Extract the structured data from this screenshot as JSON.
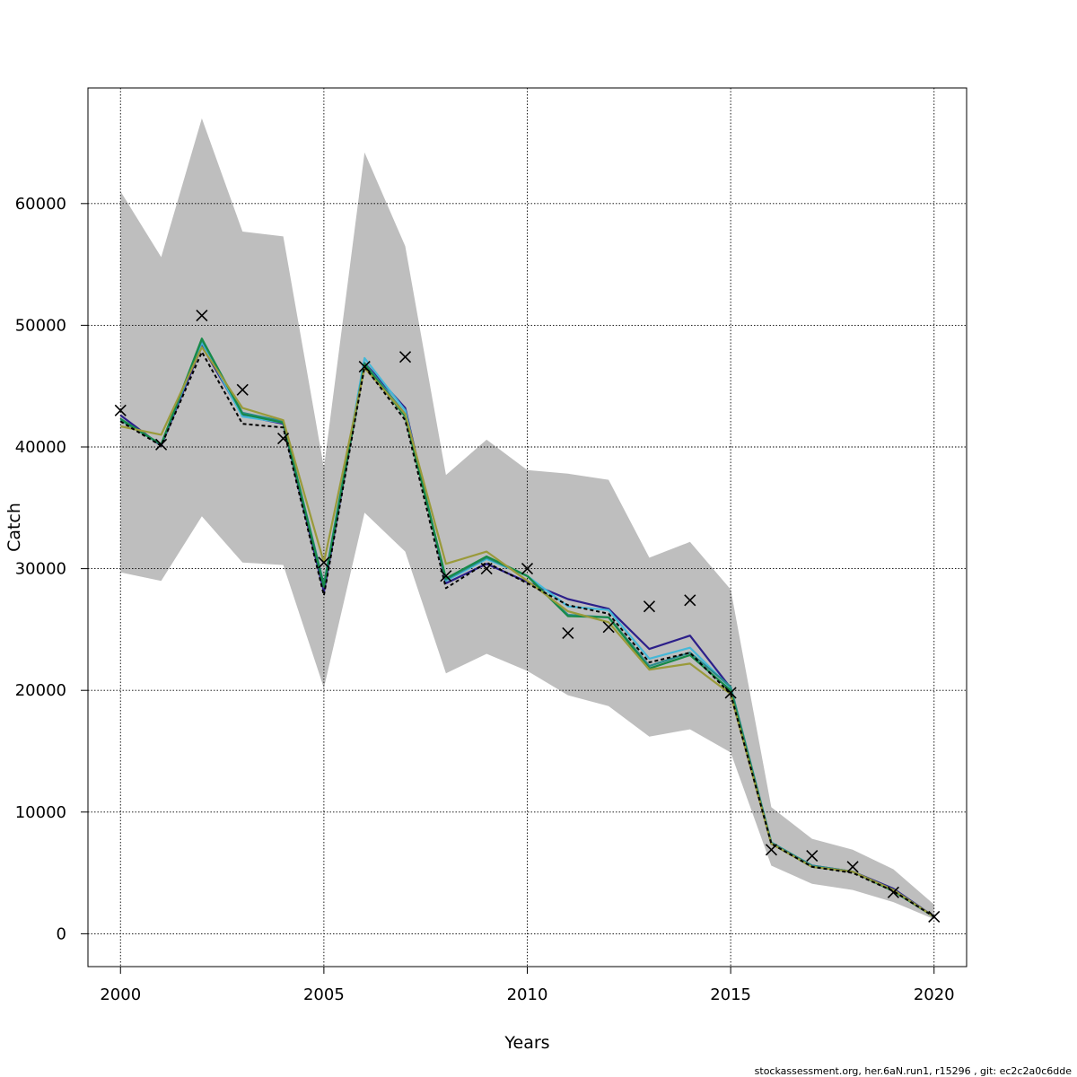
{
  "chart_data": {
    "type": "line",
    "xlabel": "Years",
    "ylabel": "Catch",
    "xlim": [
      1999.2,
      2020.8
    ],
    "ylim": [
      -2700,
      69500
    ],
    "xticks": [
      2000,
      2005,
      2010,
      2015,
      2020
    ],
    "yticks": [
      0,
      10000,
      20000,
      30000,
      40000,
      50000,
      60000
    ],
    "grid": true,
    "x": [
      2000,
      2001,
      2002,
      2003,
      2004,
      2005,
      2006,
      2007,
      2008,
      2009,
      2010,
      2011,
      2012,
      2013,
      2014,
      2015,
      2016,
      2017,
      2018,
      2019,
      2020
    ],
    "confidence_band": {
      "color": "#bebebe",
      "lower": [
        29700,
        29000,
        34300,
        30500,
        30300,
        20200,
        34600,
        31400,
        21400,
        23000,
        21600,
        19600,
        18700,
        16200,
        16800,
        14900,
        5600,
        4100,
        3600,
        2600,
        1200
      ],
      "upper": [
        61000,
        55600,
        67000,
        57700,
        57300,
        38300,
        64200,
        56500,
        37700,
        40600,
        38100,
        37800,
        37300,
        30900,
        32200,
        28300,
        10400,
        7800,
        6900,
        5300,
        2400
      ]
    },
    "series": [
      {
        "color": "#000000",
        "dashed": true,
        "values": [
          42100,
          40100,
          47800,
          41900,
          41600,
          27800,
          46600,
          42200,
          28400,
          30500,
          28800,
          27000,
          26300,
          22300,
          23100,
          19700,
          7400,
          5500,
          5000,
          3500,
          1400
        ]
      },
      {
        "color": "#2c1f8a",
        "values": [
          42600,
          40100,
          48300,
          42600,
          41900,
          28100,
          46900,
          43200,
          28800,
          30400,
          28900,
          27500,
          26700,
          23400,
          24500,
          20200,
          7400,
          5600,
          5100,
          3700,
          1400
        ]
      },
      {
        "color": "#45b8d8",
        "values": [
          42300,
          40200,
          48600,
          42500,
          42000,
          28600,
          47300,
          43000,
          29000,
          30800,
          29400,
          26900,
          26600,
          22600,
          23500,
          20200,
          7500,
          5500,
          5100,
          3600,
          1400
        ]
      },
      {
        "color": "#2a8c8c",
        "values": [
          42200,
          40200,
          48800,
          42800,
          42100,
          28700,
          46900,
          42700,
          29100,
          30900,
          29400,
          26200,
          26000,
          22000,
          23100,
          20300,
          7500,
          5600,
          5100,
          3600,
          1400
        ]
      },
      {
        "color": "#168a48",
        "values": [
          42300,
          40200,
          48900,
          42700,
          42000,
          28500,
          46800,
          42500,
          29200,
          31000,
          29400,
          26100,
          26000,
          21800,
          22900,
          20000,
          7400,
          5500,
          5100,
          3500,
          1400
        ]
      },
      {
        "color": "#9a9a3a",
        "values": [
          41700,
          41000,
          48200,
          43200,
          42200,
          30500,
          46500,
          42700,
          30400,
          31400,
          29000,
          26500,
          25600,
          21700,
          22200,
          19700,
          7400,
          5500,
          5100,
          3600,
          1400
        ]
      }
    ],
    "observed": {
      "marker": "x",
      "values": [
        43000,
        40200,
        50800,
        44700,
        40700,
        30500,
        46600,
        47400,
        29400,
        30000,
        30000,
        24700,
        25200,
        26900,
        27400,
        19800,
        6900,
        6400,
        5500,
        3400,
        1400
      ]
    }
  },
  "footer_text": "stockassessment.org, her.6aN.run1, r15296 , git: ec2c2a0c6dde"
}
